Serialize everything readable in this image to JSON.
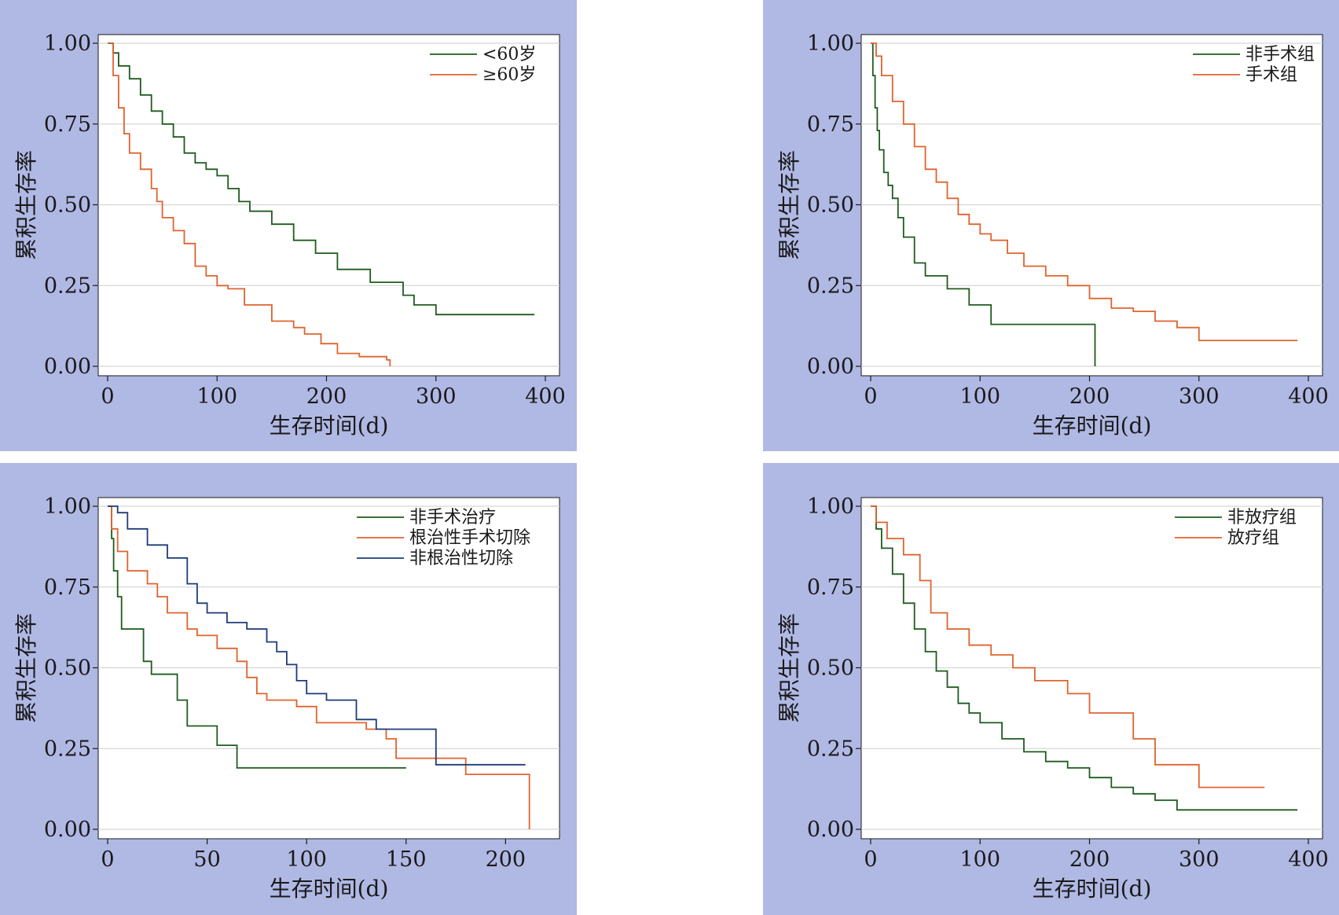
{
  "chart_data": [
    {
      "type": "line",
      "xlabel": "生存时间(d)",
      "ylabel": "累积生存率",
      "xlim": [
        0,
        400
      ],
      "ylim": [
        0,
        1
      ],
      "xticks": [
        0,
        100,
        200,
        300,
        400
      ],
      "yticks": [
        0,
        0.25,
        0.5,
        0.75,
        1
      ],
      "ytick_labels": [
        "0.00",
        "0.25",
        "0.50",
        "0.75",
        "1.00"
      ],
      "grid": true,
      "legend_position": "top-right",
      "series": [
        {
          "name": "<60岁",
          "color": "#1e5b1e",
          "x": [
            0,
            5,
            10,
            20,
            30,
            40,
            50,
            60,
            70,
            80,
            90,
            100,
            110,
            120,
            130,
            150,
            170,
            190,
            210,
            240,
            270,
            280,
            300,
            390
          ],
          "y": [
            1.0,
            0.97,
            0.93,
            0.89,
            0.84,
            0.79,
            0.75,
            0.71,
            0.66,
            0.63,
            0.61,
            0.59,
            0.55,
            0.51,
            0.48,
            0.44,
            0.39,
            0.35,
            0.3,
            0.26,
            0.22,
            0.19,
            0.16,
            0.16
          ]
        },
        {
          "name": "≥60岁",
          "color": "#e0632e",
          "x": [
            0,
            5,
            10,
            15,
            20,
            30,
            40,
            45,
            50,
            60,
            70,
            80,
            90,
            100,
            110,
            125,
            150,
            170,
            180,
            195,
            210,
            230,
            255,
            258
          ],
          "y": [
            1.0,
            0.9,
            0.8,
            0.72,
            0.66,
            0.61,
            0.55,
            0.51,
            0.46,
            0.42,
            0.38,
            0.31,
            0.28,
            0.25,
            0.24,
            0.19,
            0.14,
            0.12,
            0.1,
            0.07,
            0.04,
            0.03,
            0.02,
            0.0
          ]
        }
      ]
    },
    {
      "type": "line",
      "xlabel": "生存时间(d)",
      "ylabel": "累积生存率",
      "xlim": [
        0,
        400
      ],
      "ylim": [
        0,
        1
      ],
      "xticks": [
        0,
        100,
        200,
        300,
        400
      ],
      "yticks": [
        0,
        0.25,
        0.5,
        0.75,
        1
      ],
      "ytick_labels": [
        "0.00",
        "0.25",
        "0.50",
        "0.75",
        "1.00"
      ],
      "grid": true,
      "legend_position": "top-right",
      "series": [
        {
          "name": "非手术组",
          "color": "#1e5b1e",
          "x": [
            0,
            2,
            4,
            6,
            8,
            12,
            16,
            20,
            25,
            30,
            40,
            50,
            70,
            90,
            110,
            205,
            205
          ],
          "y": [
            1.0,
            0.9,
            0.8,
            0.73,
            0.67,
            0.6,
            0.56,
            0.52,
            0.46,
            0.4,
            0.32,
            0.28,
            0.24,
            0.19,
            0.13,
            0.13,
            0.0
          ]
        },
        {
          "name": "手术组",
          "color": "#e0632e",
          "x": [
            0,
            5,
            10,
            20,
            30,
            40,
            50,
            60,
            70,
            80,
            90,
            100,
            110,
            125,
            140,
            160,
            180,
            200,
            220,
            240,
            260,
            280,
            300,
            390
          ],
          "y": [
            1.0,
            0.96,
            0.9,
            0.82,
            0.75,
            0.68,
            0.61,
            0.57,
            0.52,
            0.47,
            0.44,
            0.41,
            0.39,
            0.35,
            0.31,
            0.28,
            0.25,
            0.21,
            0.18,
            0.17,
            0.14,
            0.12,
            0.08,
            0.08
          ]
        }
      ]
    },
    {
      "type": "line",
      "xlabel": "生存时间(d)",
      "ylabel": "累积生存率",
      "xlim": [
        0,
        220
      ],
      "ylim": [
        0,
        1
      ],
      "xticks": [
        0,
        50,
        100,
        150,
        200
      ],
      "yticks": [
        0,
        0.25,
        0.5,
        0.75,
        1
      ],
      "ytick_labels": [
        "0.00",
        "0.25",
        "0.50",
        "0.75",
        "1.00"
      ],
      "grid": true,
      "legend_position": "top-right",
      "series": [
        {
          "name": "非手术治疗",
          "color": "#1e5b1e",
          "x": [
            0,
            2,
            3,
            5,
            7,
            10,
            18,
            22,
            35,
            40,
            55,
            65,
            150
          ],
          "y": [
            1.0,
            0.9,
            0.8,
            0.72,
            0.62,
            0.62,
            0.52,
            0.48,
            0.4,
            0.32,
            0.26,
            0.19,
            0.19
          ]
        },
        {
          "name": "根治性手术切除",
          "color": "#e0632e",
          "x": [
            0,
            2,
            5,
            10,
            20,
            25,
            30,
            40,
            45,
            55,
            65,
            70,
            75,
            80,
            95,
            105,
            130,
            140,
            145,
            180,
            210,
            212
          ],
          "y": [
            1.0,
            0.93,
            0.86,
            0.8,
            0.76,
            0.72,
            0.67,
            0.62,
            0.6,
            0.56,
            0.52,
            0.47,
            0.42,
            0.4,
            0.38,
            0.33,
            0.31,
            0.28,
            0.22,
            0.17,
            0.17,
            0.0
          ]
        },
        {
          "name": "非根治性切除",
          "color": "#1e3c78",
          "x": [
            0,
            5,
            10,
            20,
            30,
            40,
            45,
            50,
            60,
            70,
            80,
            85,
            90,
            95,
            100,
            110,
            125,
            135,
            165,
            210
          ],
          "y": [
            1.0,
            0.98,
            0.93,
            0.88,
            0.84,
            0.76,
            0.7,
            0.67,
            0.64,
            0.62,
            0.58,
            0.55,
            0.51,
            0.46,
            0.42,
            0.4,
            0.34,
            0.31,
            0.2,
            0.2
          ]
        }
      ]
    },
    {
      "type": "line",
      "xlabel": "生存时间(d)",
      "ylabel": "累积生存率",
      "xlim": [
        0,
        400
      ],
      "ylim": [
        0,
        1
      ],
      "xticks": [
        0,
        100,
        200,
        300,
        400
      ],
      "yticks": [
        0,
        0.25,
        0.5,
        0.75,
        1
      ],
      "ytick_labels": [
        "0.00",
        "0.25",
        "0.50",
        "0.75",
        "1.00"
      ],
      "grid": true,
      "legend_position": "top-right",
      "series": [
        {
          "name": "非放疗组",
          "color": "#1e5b1e",
          "x": [
            0,
            5,
            10,
            20,
            30,
            40,
            50,
            60,
            70,
            80,
            90,
            100,
            120,
            140,
            160,
            180,
            200,
            220,
            240,
            260,
            280,
            390
          ],
          "y": [
            1.0,
            0.93,
            0.87,
            0.79,
            0.7,
            0.62,
            0.55,
            0.49,
            0.44,
            0.39,
            0.36,
            0.33,
            0.28,
            0.24,
            0.21,
            0.19,
            0.16,
            0.13,
            0.11,
            0.09,
            0.06,
            0.06
          ]
        },
        {
          "name": "放疗组",
          "color": "#e0632e",
          "x": [
            0,
            5,
            15,
            30,
            45,
            55,
            70,
            90,
            110,
            130,
            150,
            180,
            200,
            240,
            260,
            300,
            360
          ],
          "y": [
            1.0,
            0.95,
            0.9,
            0.85,
            0.77,
            0.67,
            0.62,
            0.57,
            0.54,
            0.5,
            0.46,
            0.42,
            0.36,
            0.28,
            0.2,
            0.13,
            0.13
          ]
        }
      ]
    }
  ]
}
